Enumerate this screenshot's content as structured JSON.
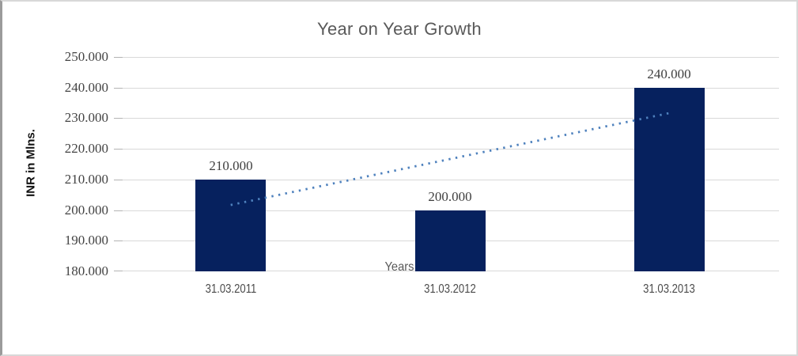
{
  "chart_data": {
    "type": "bar",
    "title": "Year on Year Growth",
    "categories": [
      "31.03.2011",
      "31.03.2012",
      "31.03.2013"
    ],
    "values": [
      210,
      200,
      240
    ],
    "data_labels": [
      "210.000",
      "200.000",
      "240.000"
    ],
    "xlabel": "Years",
    "ylabel": "INR in Mlns.",
    "ylim": [
      180,
      250
    ],
    "ytick_step": 10,
    "ytick_labels": [
      "180.000",
      "190.000",
      "200.000",
      "210.000",
      "220.000",
      "230.000",
      "240.000",
      "250.000"
    ],
    "grid": true,
    "legend": false,
    "trendline": {
      "type": "linear",
      "style": "dotted",
      "start_value": 201.67,
      "end_value": 231.67,
      "color": "#4e81bd"
    },
    "colors": {
      "bar": "#06215e",
      "gridline": "#d9d9d9",
      "title_text": "#595959",
      "tick_label_text": "#444444",
      "axis_title_text": "#111111"
    }
  }
}
